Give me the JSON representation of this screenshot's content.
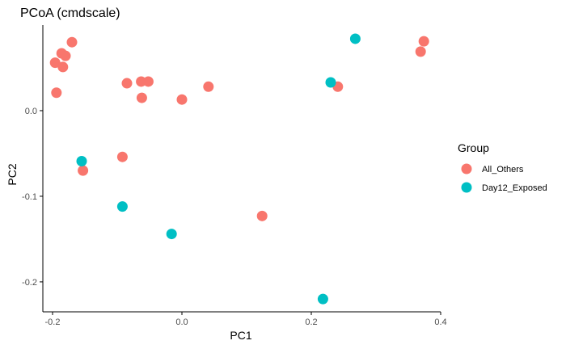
{
  "chart_data": {
    "type": "scatter",
    "title": "PCoA (cmdscale)",
    "xlabel": "PC1",
    "ylabel": "PC2",
    "xlim": [
      -0.215,
      0.4
    ],
    "ylim": [
      -0.235,
      0.1
    ],
    "x_ticks": [
      -0.2,
      0.0,
      0.2,
      0.4
    ],
    "x_tick_labels": [
      "-0.2",
      "0.0",
      "0.2",
      "0.4"
    ],
    "y_ticks": [
      -0.2,
      -0.1,
      0.0
    ],
    "y_tick_labels": [
      "-0.2",
      "-0.1",
      "0.0"
    ],
    "grid": false,
    "legend": {
      "title": "Group",
      "placement": "right"
    },
    "series": [
      {
        "name": "All_Others",
        "color": "#F8766D",
        "points": [
          {
            "x": -0.17,
            "y": 0.08
          },
          {
            "x": -0.186,
            "y": 0.067
          },
          {
            "x": -0.18,
            "y": 0.064
          },
          {
            "x": -0.196,
            "y": 0.056
          },
          {
            "x": -0.184,
            "y": 0.051
          },
          {
            "x": -0.194,
            "y": 0.021
          },
          {
            "x": -0.085,
            "y": 0.032
          },
          {
            "x": -0.063,
            "y": 0.034
          },
          {
            "x": -0.052,
            "y": 0.034
          },
          {
            "x": -0.062,
            "y": 0.015
          },
          {
            "x": 0.0,
            "y": 0.013
          },
          {
            "x": 0.041,
            "y": 0.028
          },
          {
            "x": 0.241,
            "y": 0.028
          },
          {
            "x": 0.369,
            "y": 0.069
          },
          {
            "x": 0.374,
            "y": 0.081
          },
          {
            "x": -0.092,
            "y": -0.054
          },
          {
            "x": -0.153,
            "y": -0.07
          },
          {
            "x": 0.124,
            "y": -0.123
          }
        ]
      },
      {
        "name": "Day12_Exposed",
        "color": "#00BFC4",
        "points": [
          {
            "x": 0.268,
            "y": 0.084
          },
          {
            "x": 0.23,
            "y": 0.033
          },
          {
            "x": -0.155,
            "y": -0.059
          },
          {
            "x": -0.092,
            "y": -0.112
          },
          {
            "x": -0.016,
            "y": -0.144
          },
          {
            "x": 0.218,
            "y": -0.22
          }
        ]
      }
    ]
  }
}
